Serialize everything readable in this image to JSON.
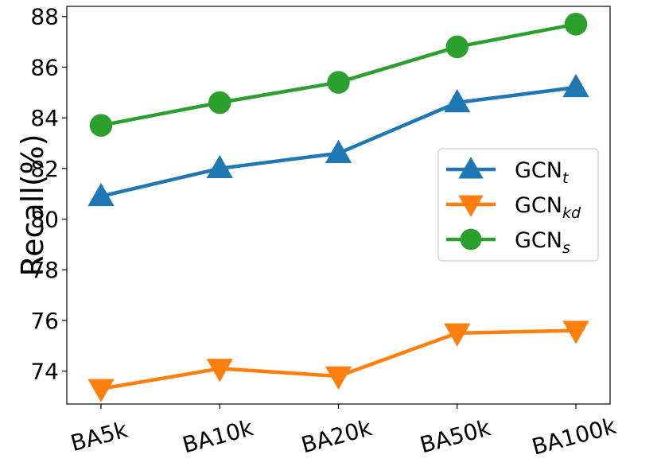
{
  "chart_data": {
    "type": "line",
    "categories": [
      "BA5k",
      "BA10k",
      "BA20k",
      "BA50k",
      "BA100k"
    ],
    "ylabel": "Recall(%)",
    "xlabel": "",
    "ylim": [
      72.7,
      88.4
    ],
    "yticks": [
      74,
      76,
      78,
      80,
      82,
      84,
      86,
      88
    ],
    "grid": false,
    "legend_position": "center-right",
    "series": [
      {
        "name": "GCN",
        "subscript": "t",
        "color": "#1f77b4",
        "marker": "triangle-up",
        "values": [
          80.9,
          82.0,
          82.6,
          84.6,
          85.2
        ]
      },
      {
        "name": "GCN",
        "subscript": "kd",
        "color": "#ff7f0e",
        "marker": "triangle-down",
        "values": [
          73.3,
          74.1,
          73.8,
          75.5,
          75.6
        ]
      },
      {
        "name": "GCN",
        "subscript": "s",
        "color": "#2ca02c",
        "marker": "circle",
        "values": [
          83.7,
          84.6,
          85.4,
          86.8,
          87.7
        ]
      }
    ]
  }
}
